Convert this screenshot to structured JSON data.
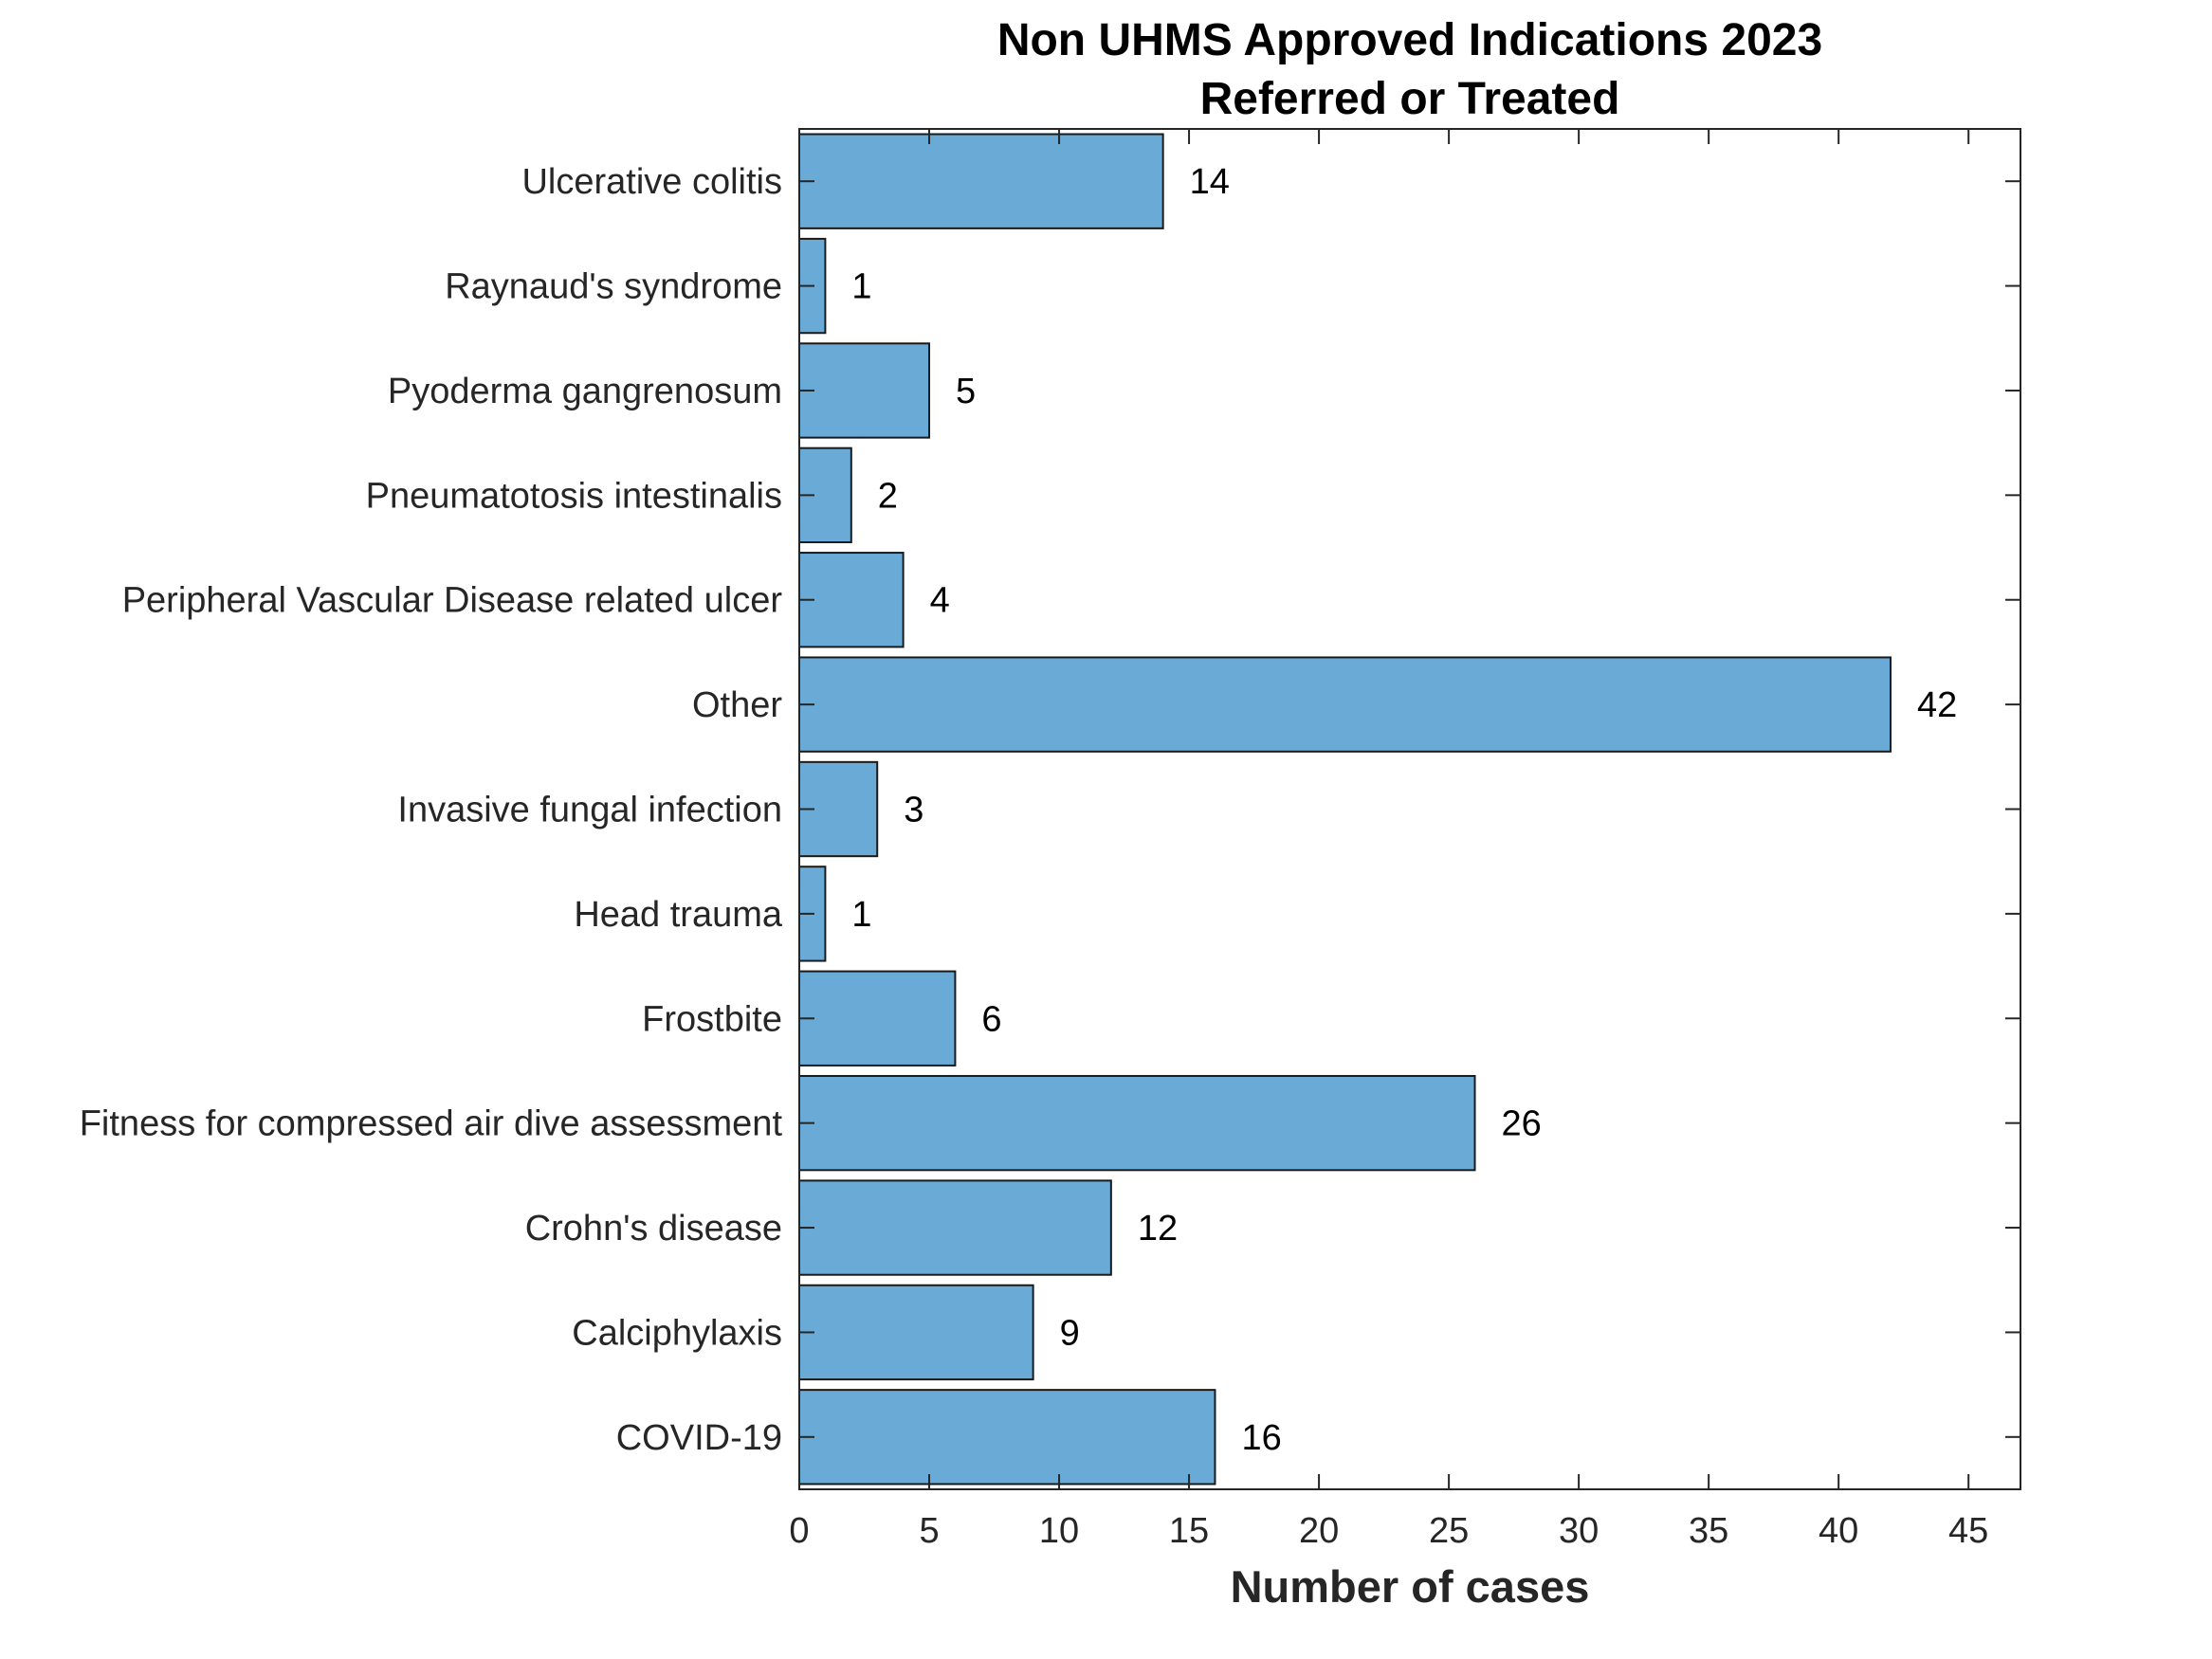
{
  "chart_data": {
    "type": "bar",
    "orientation": "horizontal",
    "title": [
      "Non UHMS Approved Indications 2023",
      "Referred or Treated"
    ],
    "xlabel": "Number of cases",
    "ylabel": "",
    "categories": [
      "Ulcerative colitis",
      "Raynaud's syndrome",
      "Pyoderma gangrenosum",
      "Pneumatotosis intestinalis",
      "Peripheral Vascular Disease related ulcer",
      "Other",
      "Invasive fungal infection",
      "Head trauma",
      "Frostbite",
      "Fitness for compressed air dive assessment",
      "Crohn's disease",
      "Calciphylaxis",
      "COVID-19"
    ],
    "values": [
      14,
      1,
      5,
      2,
      4,
      42,
      3,
      1,
      6,
      26,
      12,
      9,
      16
    ],
    "data_labels": [
      "14",
      "1",
      "5",
      "2",
      "4",
      "42",
      "3",
      "1",
      "6",
      "26",
      "12",
      "9",
      "16"
    ],
    "xlim": [
      0,
      47
    ],
    "xticks": [
      0,
      5,
      10,
      15,
      20,
      25,
      30,
      35,
      40,
      45
    ],
    "xtick_labels": [
      "0",
      "5",
      "10",
      "15",
      "20",
      "25",
      "30",
      "35",
      "40",
      "45"
    ],
    "grid": false,
    "legend": "none",
    "colors": {
      "bar_fill": "#69aad7",
      "bar_edge": "#1a1a1a",
      "axis": "#262626"
    }
  }
}
